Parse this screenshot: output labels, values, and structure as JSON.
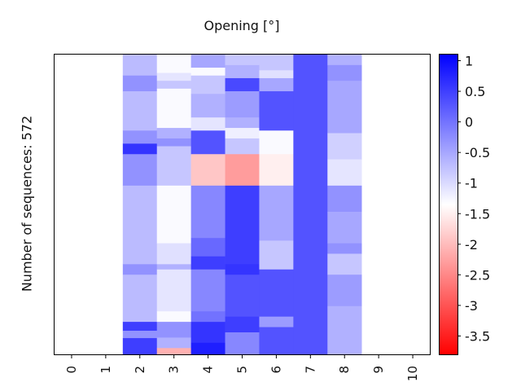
{
  "chart_data": {
    "type": "heatmap",
    "title": "Opening [°]",
    "ylabel": "Number of sequences: 572",
    "xlabel": "",
    "x_categories": [
      "0",
      "1",
      "2",
      "3",
      "4",
      "5",
      "6",
      "7",
      "8",
      "9",
      "10"
    ],
    "colorbar": {
      "range": [
        -3.8,
        1.1
      ],
      "ticks": [
        "1",
        "0.5",
        "0",
        "-0.5",
        "-1",
        "-1.5",
        "-2",
        "-2.5",
        "-3",
        "-3.5"
      ],
      "tick_values": [
        1,
        0.5,
        0,
        -0.5,
        -1,
        -1.5,
        -2,
        -2.5,
        -3,
        -3.5
      ],
      "colormap": "bwr (blue high, white mid, red low)",
      "colors": {
        "high": "#0000ff",
        "mid": "#ffffff",
        "low": "#ff0000"
      }
    },
    "rows": 572,
    "columns": [
      {
        "x": "0",
        "segments": []
      },
      {
        "x": "1",
        "segments": []
      },
      {
        "x": "2",
        "segments": [
          {
            "from": 0,
            "to": 40,
            "value": -0.7
          },
          {
            "from": 40,
            "to": 70,
            "value": -0.3
          },
          {
            "from": 70,
            "to": 145,
            "value": -0.7
          },
          {
            "from": 145,
            "to": 170,
            "value": -0.3
          },
          {
            "from": 170,
            "to": 190,
            "value": 0.6
          },
          {
            "from": 190,
            "to": 250,
            "value": -0.3
          },
          {
            "from": 250,
            "to": 400,
            "value": -0.7
          },
          {
            "from": 400,
            "to": 420,
            "value": -0.3
          },
          {
            "from": 420,
            "to": 510,
            "value": -0.7
          },
          {
            "from": 510,
            "to": 527,
            "value": 0.5
          },
          {
            "from": 527,
            "to": 541,
            "value": -0.3
          },
          {
            "from": 541,
            "to": 572,
            "value": 0.5
          }
        ]
      },
      {
        "x": "3",
        "segments": [
          {
            "from": 0,
            "to": 35,
            "value": -1.3
          },
          {
            "from": 35,
            "to": 50,
            "value": -1.1
          },
          {
            "from": 50,
            "to": 65,
            "value": -0.8
          },
          {
            "from": 65,
            "to": 140,
            "value": -1.3
          },
          {
            "from": 140,
            "to": 160,
            "value": -0.6
          },
          {
            "from": 160,
            "to": 175,
            "value": -0.3
          },
          {
            "from": 175,
            "to": 250,
            "value": -0.8
          },
          {
            "from": 250,
            "to": 360,
            "value": -1.3
          },
          {
            "from": 360,
            "to": 400,
            "value": -1.05
          },
          {
            "from": 400,
            "to": 410,
            "value": -0.6
          },
          {
            "from": 410,
            "to": 490,
            "value": -1.1
          },
          {
            "from": 490,
            "to": 510,
            "value": -1.3
          },
          {
            "from": 510,
            "to": 540,
            "value": -0.3
          },
          {
            "from": 540,
            "to": 560,
            "value": -0.6
          },
          {
            "from": 560,
            "to": 572,
            "value": -2.1
          }
        ]
      },
      {
        "x": "4",
        "segments": [
          {
            "from": 0,
            "to": 25,
            "value": -0.5
          },
          {
            "from": 25,
            "to": 40,
            "value": -1.3
          },
          {
            "from": 40,
            "to": 75,
            "value": -0.8
          },
          {
            "from": 75,
            "to": 120,
            "value": -0.6
          },
          {
            "from": 120,
            "to": 145,
            "value": -1.1
          },
          {
            "from": 145,
            "to": 190,
            "value": 0.3
          },
          {
            "from": 190,
            "to": 250,
            "value": -1.9
          },
          {
            "from": 250,
            "to": 350,
            "value": -0.2
          },
          {
            "from": 350,
            "to": 385,
            "value": 0.1
          },
          {
            "from": 385,
            "to": 410,
            "value": 0.5
          },
          {
            "from": 410,
            "to": 490,
            "value": -0.2
          },
          {
            "from": 490,
            "to": 510,
            "value": 0.0
          },
          {
            "from": 510,
            "to": 550,
            "value": 0.6
          },
          {
            "from": 550,
            "to": 572,
            "value": 0.8
          }
        ]
      },
      {
        "x": "5",
        "segments": [
          {
            "from": 0,
            "to": 20,
            "value": -0.8
          },
          {
            "from": 20,
            "to": 45,
            "value": -0.6
          },
          {
            "from": 45,
            "to": 70,
            "value": 0.4
          },
          {
            "from": 70,
            "to": 120,
            "value": -0.4
          },
          {
            "from": 120,
            "to": 140,
            "value": -0.6
          },
          {
            "from": 140,
            "to": 160,
            "value": -1.2
          },
          {
            "from": 160,
            "to": 190,
            "value": -0.8
          },
          {
            "from": 190,
            "to": 250,
            "value": -2.3
          },
          {
            "from": 250,
            "to": 400,
            "value": 0.5
          },
          {
            "from": 400,
            "to": 420,
            "value": 0.6
          },
          {
            "from": 420,
            "to": 500,
            "value": 0.3
          },
          {
            "from": 500,
            "to": 530,
            "value": 0.5
          },
          {
            "from": 530,
            "to": 572,
            "value": -0.2
          }
        ]
      },
      {
        "x": "6",
        "segments": [
          {
            "from": 0,
            "to": 30,
            "value": -0.8
          },
          {
            "from": 30,
            "to": 45,
            "value": -1.05
          },
          {
            "from": 45,
            "to": 70,
            "value": -0.5
          },
          {
            "from": 70,
            "to": 145,
            "value": 0.3
          },
          {
            "from": 145,
            "to": 190,
            "value": -1.3
          },
          {
            "from": 190,
            "to": 250,
            "value": -1.5
          },
          {
            "from": 250,
            "to": 355,
            "value": -0.5
          },
          {
            "from": 355,
            "to": 410,
            "value": -0.8
          },
          {
            "from": 410,
            "to": 500,
            "value": 0.3
          },
          {
            "from": 500,
            "to": 520,
            "value": -0.4
          },
          {
            "from": 520,
            "to": 572,
            "value": 0.3
          }
        ]
      },
      {
        "x": "7",
        "segments": [
          {
            "from": 0,
            "to": 572,
            "value": 0.3
          }
        ]
      },
      {
        "x": "8",
        "segments": [
          {
            "from": 0,
            "to": 20,
            "value": -0.6
          },
          {
            "from": 20,
            "to": 50,
            "value": -0.3
          },
          {
            "from": 50,
            "to": 150,
            "value": -0.5
          },
          {
            "from": 150,
            "to": 200,
            "value": -0.9
          },
          {
            "from": 200,
            "to": 250,
            "value": -1.1
          },
          {
            "from": 250,
            "to": 300,
            "value": -0.3
          },
          {
            "from": 300,
            "to": 360,
            "value": -0.5
          },
          {
            "from": 360,
            "to": 380,
            "value": -0.3
          },
          {
            "from": 380,
            "to": 420,
            "value": -0.8
          },
          {
            "from": 420,
            "to": 480,
            "value": -0.4
          },
          {
            "from": 480,
            "to": 572,
            "value": -0.6
          }
        ]
      },
      {
        "x": "9",
        "segments": []
      },
      {
        "x": "10",
        "segments": []
      }
    ]
  }
}
